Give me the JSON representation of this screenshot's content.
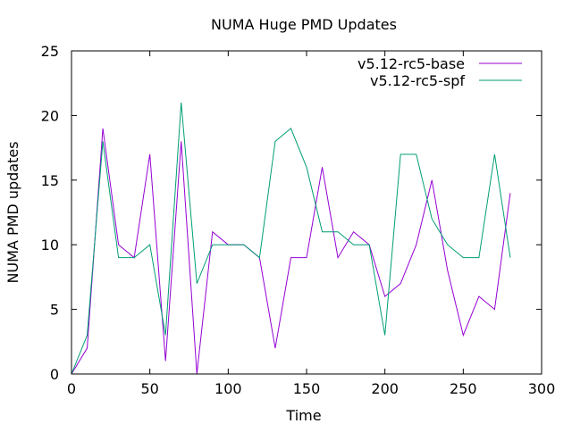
{
  "chart_data": {
    "type": "line",
    "title": "NUMA Huge PMD Updates",
    "xlabel": "Time",
    "ylabel": "NUMA PMD updates",
    "xlim": [
      0,
      300
    ],
    "ylim": [
      0,
      25
    ],
    "xticks": [
      0,
      50,
      100,
      150,
      200,
      250,
      300
    ],
    "yticks": [
      0,
      5,
      10,
      15,
      20,
      25
    ],
    "grid": false,
    "legend_position": "top-right",
    "x": [
      0,
      10,
      20,
      30,
      40,
      50,
      60,
      70,
      80,
      90,
      100,
      110,
      120,
      130,
      140,
      150,
      160,
      170,
      180,
      190,
      200,
      210,
      220,
      230,
      240,
      250,
      260,
      270,
      280
    ],
    "series": [
      {
        "name": "v5.12-rc5-base",
        "color": "#9400d3",
        "values": [
          0,
          2,
          19,
          10,
          9,
          17,
          1,
          18,
          0,
          11,
          10,
          10,
          9,
          2,
          9,
          9,
          16,
          9,
          11,
          10,
          6,
          7,
          10,
          15,
          8,
          3,
          6,
          5,
          14
        ]
      },
      {
        "name": "v5.12-rc5-spf",
        "color": "#009e73",
        "values": [
          0,
          3,
          18,
          9,
          9,
          10,
          3,
          21,
          7,
          10,
          10,
          10,
          9,
          18,
          19,
          16,
          11,
          11,
          10,
          10,
          3,
          17,
          17,
          12,
          10,
          9,
          9,
          17,
          9
        ]
      }
    ]
  }
}
